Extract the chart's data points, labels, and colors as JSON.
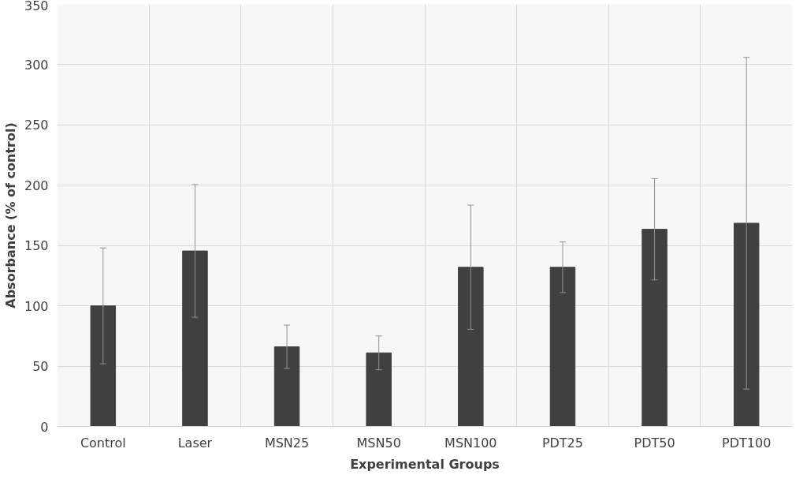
{
  "chart_data": {
    "type": "bar",
    "xlabel": "Experimental Groups",
    "ylabel": "Absorbance (% of control)",
    "categories": [
      "Control",
      "Laser",
      "MSN25",
      "MSN50",
      "MSN100",
      "PDT25",
      "PDT50",
      "PDT100"
    ],
    "values": [
      100,
      145.5,
      66,
      61,
      132,
      132,
      163.5,
      168.5
    ],
    "errors": [
      48,
      55,
      18,
      14,
      51.5,
      21,
      42,
      137.5
    ],
    "color": "#404040",
    "ylim": [
      0,
      350
    ],
    "yticks": [
      0,
      50,
      100,
      150,
      200,
      250,
      300,
      350
    ],
    "grid": true
  }
}
